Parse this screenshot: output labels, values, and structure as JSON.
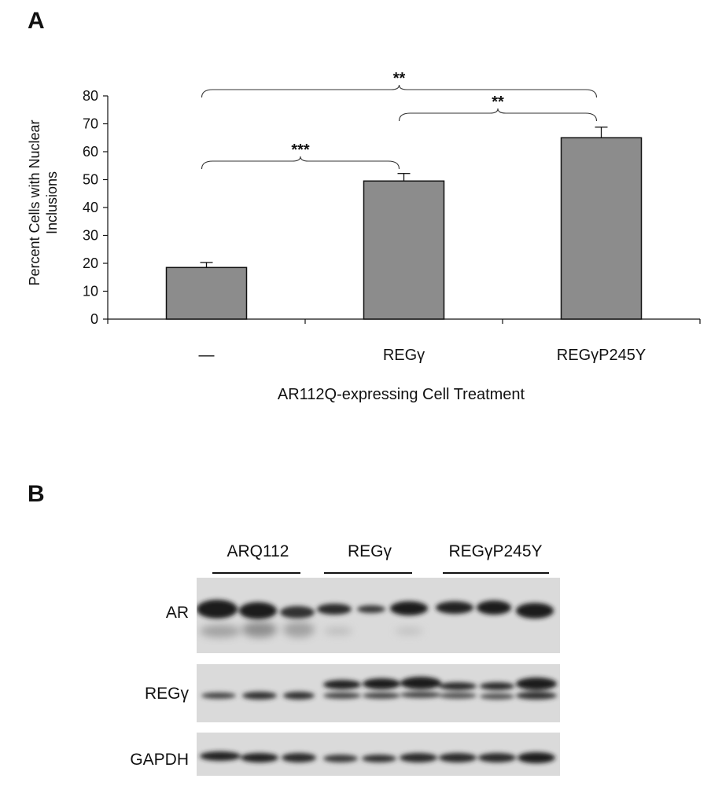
{
  "panels": {
    "a_label": "A",
    "b_label": "B"
  },
  "chart_data": {
    "type": "bar",
    "categories": [
      "—",
      "REGγ",
      "REGγP245Y"
    ],
    "values": [
      18.5,
      49.5,
      65
    ],
    "errors": [
      1.8,
      2.7,
      3.8
    ],
    "ylabel": "Percent Cells with Nuclear Inclusions",
    "xlabel": "AR112Q-expressing Cell Treatment",
    "ylim": [
      0,
      80
    ],
    "yticks": [
      0,
      10,
      20,
      30,
      40,
      50,
      60,
      70,
      80
    ],
    "bar_color": "#8c8c8c",
    "significance": [
      {
        "from": 0,
        "to": 1,
        "label": "***"
      },
      {
        "from": 1,
        "to": 2,
        "label": "**"
      },
      {
        "from": 0,
        "to": 2,
        "label": "**"
      }
    ]
  },
  "blot": {
    "lane_groups": [
      "ARQ112",
      "REGγ",
      "REGγP245Y"
    ],
    "rows": [
      "AR",
      "REGγ",
      "GAPDH"
    ]
  }
}
